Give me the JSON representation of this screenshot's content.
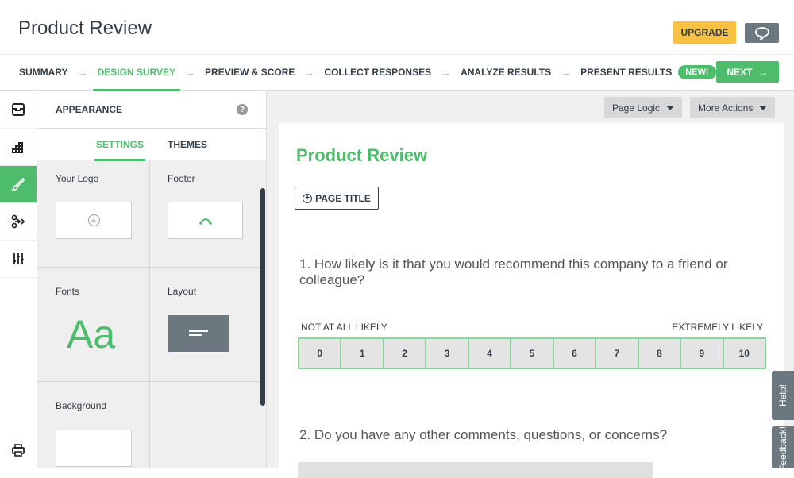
{
  "header": {
    "title": "Product Review",
    "upgrade_label": "UPGRADE",
    "next_label": "NEXT"
  },
  "nav": {
    "steps": [
      "SUMMARY",
      "DESIGN SURVEY",
      "PREVIEW & SCORE",
      "COLLECT RESPONSES",
      "ANALYZE RESULTS",
      "PRESENT RESULTS"
    ],
    "new_badge": "NEW!"
  },
  "panel": {
    "title": "APPEARANCE",
    "help": "?",
    "tabs": [
      "SETTINGS",
      "THEMES"
    ],
    "cells": {
      "logo": "Your Logo",
      "footer": "Footer",
      "fonts": "Fonts",
      "fonts_sample": "Aa",
      "layout": "Layout",
      "background": "Background"
    }
  },
  "toolbar": {
    "page_logic": "Page Logic",
    "more_actions": "More Actions"
  },
  "survey": {
    "title": "Product Review",
    "page_title_btn": "PAGE TITLE",
    "q1": "1. How likely is it that you would recommend this company to a friend or colleague?",
    "low_label": "NOT AT ALL LIKELY",
    "high_label": "EXTREMELY LIKELY",
    "scale": [
      "0",
      "1",
      "2",
      "3",
      "4",
      "5",
      "6",
      "7",
      "8",
      "9",
      "10"
    ],
    "q2": "2. Do you have any other comments, questions, or concerns?"
  },
  "side": {
    "help": "Help!",
    "feedback": "Feedback!"
  },
  "colors": {
    "accent": "#4dbd6c",
    "upgrade": "#f7c142",
    "dark": "#333e48"
  }
}
